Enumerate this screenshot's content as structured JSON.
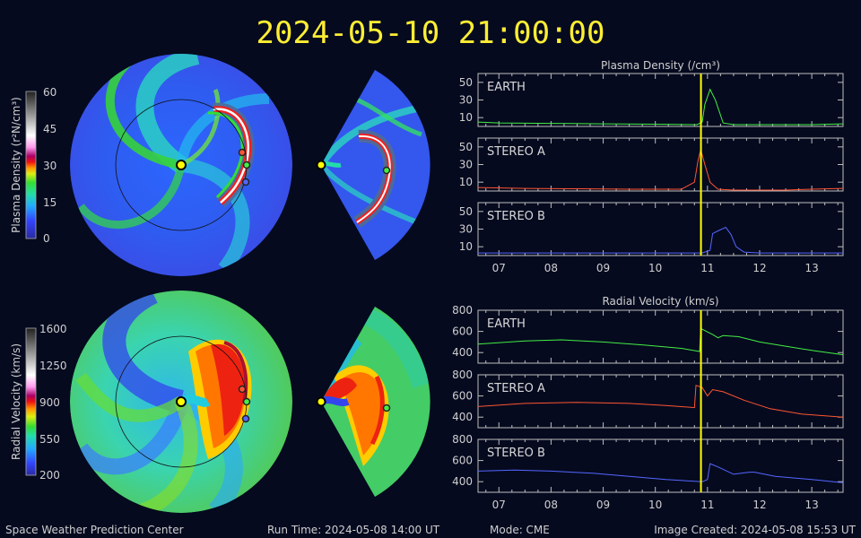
{
  "header": {
    "timestamp": "2024-05-10 21:00:00"
  },
  "colorbars": {
    "density": {
      "label": "Plasma Density (r²N/cm³)",
      "ticks": [
        "60",
        "45",
        "30",
        "15",
        "0"
      ]
    },
    "velocity": {
      "label": "Radial Velocity (km/s)",
      "ticks": [
        "1600",
        "1250",
        "900",
        "550",
        "200"
      ]
    }
  },
  "footer": {
    "center": "Space Weather Prediction Center",
    "run_time": "Run Time: 2024-05-08 14:00 UT",
    "mode": "Mode: CME",
    "created": "Image Created: 2024-05-08 15:53 UT"
  },
  "colors": {
    "earth": "#44ee44",
    "stereo_a": "#ff5533",
    "stereo_b": "#5566ff",
    "marker": "#ffff00"
  },
  "chart_data": [
    {
      "type": "line",
      "title": "Plasma Density (/cm³)",
      "x_ticks": [
        "07",
        "08",
        "09",
        "10",
        "11",
        "12",
        "13"
      ],
      "x_range": [
        6.6,
        13.6
      ],
      "current_time": 10.875,
      "panels": [
        {
          "name": "EARTH",
          "ylim": [
            0,
            60
          ],
          "y_ticks": [
            "50",
            "30",
            "10"
          ],
          "x": [
            6.6,
            7.0,
            8.0,
            9.0,
            10.0,
            10.8,
            10.9,
            10.95,
            11.05,
            11.15,
            11.3,
            11.5,
            12.0,
            13.0,
            13.6
          ],
          "y": [
            5,
            4,
            3.5,
            3,
            2.5,
            2,
            5,
            25,
            42,
            30,
            4,
            2,
            2,
            2,
            3
          ]
        },
        {
          "name": "STEREO A",
          "ylim": [
            0,
            60
          ],
          "y_ticks": [
            "50",
            "30",
            "10"
          ],
          "x": [
            6.6,
            7.5,
            8.5,
            9.5,
            10.5,
            10.75,
            10.82,
            10.87,
            10.95,
            11.05,
            11.2,
            11.5,
            12.5,
            13.0,
            13.6
          ],
          "y": [
            4,
            3,
            2.5,
            2,
            2,
            10,
            35,
            47,
            30,
            10,
            2,
            1,
            1,
            2,
            3
          ]
        },
        {
          "name": "STEREO B",
          "ylim": [
            0,
            60
          ],
          "y_ticks": [
            "50",
            "30",
            "10"
          ],
          "x": [
            6.6,
            8.0,
            10.0,
            10.8,
            10.9,
            11.05,
            11.1,
            11.2,
            11.35,
            11.45,
            11.55,
            11.7,
            12.0,
            13.0,
            13.6
          ],
          "y": [
            3,
            3,
            3,
            3,
            3,
            6,
            25,
            28,
            32,
            24,
            10,
            4,
            3,
            3,
            3
          ]
        }
      ]
    },
    {
      "type": "line",
      "title": "Radial Velocity (km/s)",
      "x_ticks": [
        "07",
        "08",
        "09",
        "10",
        "11",
        "12",
        "13"
      ],
      "x_range": [
        6.6,
        13.6
      ],
      "current_time": 10.875,
      "panels": [
        {
          "name": "EARTH",
          "ylim": [
            300,
            800
          ],
          "y_ticks": [
            "800",
            "600",
            "400"
          ],
          "x": [
            6.6,
            7.5,
            8.2,
            9.0,
            9.8,
            10.5,
            10.85,
            10.87,
            10.9,
            11.1,
            11.2,
            11.3,
            11.6,
            12.0,
            12.5,
            13.0,
            13.6
          ],
          "y": [
            480,
            510,
            520,
            500,
            470,
            440,
            410,
            630,
            620,
            570,
            540,
            560,
            550,
            500,
            460,
            420,
            380
          ]
        },
        {
          "name": "STEREO A",
          "ylim": [
            300,
            800
          ],
          "y_ticks": [
            "800",
            "600",
            "400"
          ],
          "x": [
            6.6,
            7.5,
            8.5,
            9.5,
            10.2,
            10.75,
            10.78,
            10.9,
            11.0,
            11.1,
            11.3,
            11.7,
            12.2,
            12.8,
            13.6
          ],
          "y": [
            500,
            530,
            540,
            530,
            510,
            490,
            700,
            680,
            600,
            660,
            640,
            560,
            480,
            430,
            400
          ]
        },
        {
          "name": "STEREO B",
          "ylim": [
            300,
            800
          ],
          "y_ticks": [
            "800",
            "600",
            "400"
          ],
          "x": [
            6.6,
            7.3,
            8.0,
            8.8,
            9.5,
            10.2,
            10.9,
            11.0,
            11.05,
            11.2,
            11.5,
            11.8,
            11.9,
            12.3,
            13.0,
            13.6
          ],
          "y": [
            500,
            510,
            500,
            480,
            450,
            420,
            400,
            420,
            570,
            540,
            470,
            490,
            490,
            450,
            420,
            390
          ]
        }
      ]
    }
  ]
}
